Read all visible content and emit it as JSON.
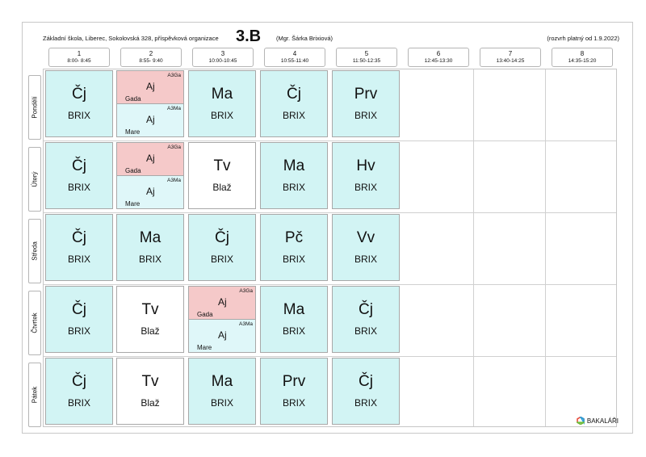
{
  "header": {
    "school": "Základní škola, Liberec, Sokolovská 328, příspěvková organizace",
    "class_name": "3.B",
    "teacher": "(Mgr. Šárka Brixiová)",
    "valid_from": "(rozvrh platný od 1.9.2022)"
  },
  "periods": [
    {
      "num": "1",
      "time": "8:00- 8:45"
    },
    {
      "num": "2",
      "time": "8:55- 9:40"
    },
    {
      "num": "3",
      "time": "10:00-10:45"
    },
    {
      "num": "4",
      "time": "10:55-11:40"
    },
    {
      "num": "5",
      "time": "11:50-12:35"
    },
    {
      "num": "6",
      "time": "12:45-13:30"
    },
    {
      "num": "7",
      "time": "13:40-14:25"
    },
    {
      "num": "8",
      "time": "14:35-15:20"
    }
  ],
  "days": [
    "Pondělí",
    "Úterý",
    "Středa",
    "Čtvrtek",
    "Pátek"
  ],
  "schedule": {
    "mon": {
      "p1": {
        "subject": "Čj",
        "teacher": "BRIX"
      },
      "p2": {
        "top": {
          "group": "A3Ga",
          "subject": "Aj",
          "teacher": "Gada"
        },
        "bottom": {
          "group": "A3Ma",
          "subject": "Aj",
          "teacher": "Mare"
        }
      },
      "p3": {
        "subject": "Ma",
        "teacher": "BRIX"
      },
      "p4": {
        "subject": "Čj",
        "teacher": "BRIX"
      },
      "p5": {
        "subject": "Prv",
        "teacher": "BRIX"
      }
    },
    "tue": {
      "p1": {
        "subject": "Čj",
        "teacher": "BRIX"
      },
      "p2": {
        "top": {
          "group": "A3Ga",
          "subject": "Aj",
          "teacher": "Gada"
        },
        "bottom": {
          "group": "A3Ma",
          "subject": "Aj",
          "teacher": "Mare"
        }
      },
      "p3": {
        "subject": "Tv",
        "teacher": "Blaž"
      },
      "p4": {
        "subject": "Ma",
        "teacher": "BRIX"
      },
      "p5": {
        "subject": "Hv",
        "teacher": "BRIX"
      }
    },
    "wed": {
      "p1": {
        "subject": "Čj",
        "teacher": "BRIX"
      },
      "p2": {
        "subject": "Ma",
        "teacher": "BRIX"
      },
      "p3": {
        "subject": "Čj",
        "teacher": "BRIX"
      },
      "p4": {
        "subject": "Pč",
        "teacher": "BRIX"
      },
      "p5": {
        "subject": "Vv",
        "teacher": "BRIX"
      }
    },
    "thu": {
      "p1": {
        "subject": "Čj",
        "teacher": "BRIX"
      },
      "p2": {
        "subject": "Tv",
        "teacher": "Blaž"
      },
      "p3": {
        "top": {
          "group": "A3Ga",
          "subject": "Aj",
          "teacher": "Gada"
        },
        "bottom": {
          "group": "A3Ma",
          "subject": "Aj",
          "teacher": "Mare"
        }
      },
      "p4": {
        "subject": "Ma",
        "teacher": "BRIX"
      },
      "p5": {
        "subject": "Čj",
        "teacher": "BRIX"
      }
    },
    "fri": {
      "p1": {
        "subject": "Čj",
        "teacher": "BRIX"
      },
      "p2": {
        "subject": "Tv",
        "teacher": "Blaž"
      },
      "p3": {
        "subject": "Ma",
        "teacher": "BRIX"
      },
      "p4": {
        "subject": "Prv",
        "teacher": "BRIX"
      },
      "p5": {
        "subject": "Čj",
        "teacher": "BRIX"
      }
    }
  },
  "colors": {
    "cell_cyan": "#d2f4f4",
    "group_pink": "#f5c9c9",
    "group_lightcyan": "#dff7f9"
  },
  "logo": {
    "text": "BAKALÁŘI",
    "icon": "bakalari-logo-icon"
  }
}
